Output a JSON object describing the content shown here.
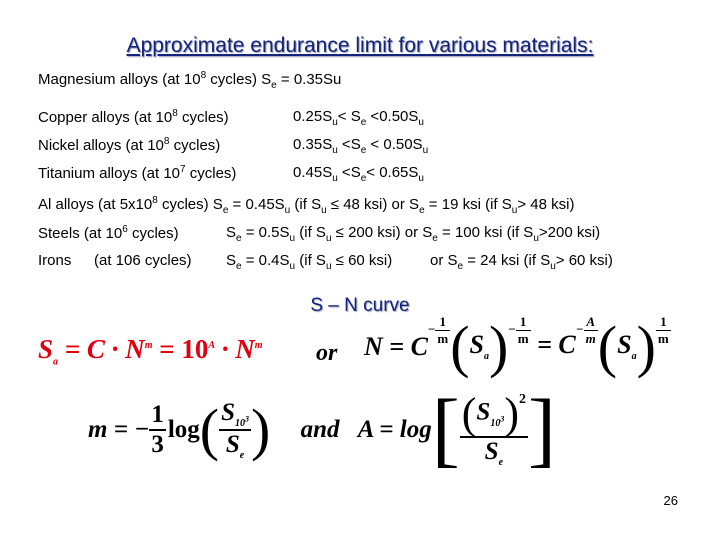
{
  "title": "Approximate endurance limit for various materials:",
  "rows": [
    {
      "c1": "Magnesium alloys  (at 10",
      "c1sup": "8",
      "c1b": " cycles)   S",
      "c1sub": "e",
      "c1c": " = 0.35Su"
    },
    {
      "c1": "Copper alloys (at 10",
      "c1sup": "8",
      "c1b": " cycles)",
      "c2": "0.25S",
      "c2sub": "u",
      "c2b": "< S",
      "c2sub2": "e",
      "c2c": " <0.50S",
      "c2sub3": "u"
    },
    {
      "c1": "Nickel alloys (at 10",
      "c1sup": "8",
      "c1b": " cycles)",
      "c2": "0.35S",
      "c2sub": "u",
      "c2b": " <S",
      "c2sub2": "e",
      "c2c": " < 0.50S",
      "c2sub3": "u"
    },
    {
      "c1": "Titanium alloys (at 10",
      "c1sup": "7",
      "c1b": " cycles)",
      "c2": "0.45S",
      "c2sub": "u",
      "c2b": " <S",
      "c2sub2": "e",
      "c2c": "< 0.65S",
      "c2sub3": "u"
    }
  ],
  "al": {
    "a": "Al alloys (at 5x10",
    "sup": "8",
    "b": " cycles) S",
    "sub1": "e",
    "c": " = 0.45S",
    "sub2": "u",
    "d": " (if S",
    "sub3": "u",
    "e": " ≤ 48 ksi)  or   S",
    "sub4": "e",
    "f": " = 19 ksi (if S",
    "sub5": "u",
    "g": "> 48 ksi)"
  },
  "steels": {
    "a": "Steels   (at 10",
    "sup": "6",
    "b": " cycles)",
    "c": "S",
    "sub1": "e",
    "d": " = 0.5S",
    "sub2": "u",
    "e": " (if S",
    "sub3": "u",
    "f": "  ≤ 200 ksi)  or   S",
    "sub4": "e",
    "g": " = 100 ksi (if S",
    "sub5": "u",
    "h": ">200 ksi)"
  },
  "irons": {
    "a": "Irons",
    "b": "(at 106 cycles)",
    "c": "S",
    "sub1": "e",
    "d": " = 0.4S",
    "sub2": "u",
    "e": " (if S",
    "sub3": "u",
    "f": " ≤ 60 ksi)",
    "g": "or   S",
    "sub4": "e",
    "h": " = 24 ksi (if S",
    "sub5": "u",
    "i": "> 60 ksi)"
  },
  "sn_title": "S – N curve",
  "eq1": {
    "lhs": "S",
    "lhs_sub": "a",
    "mid": " = C · N",
    "mid_sup": "m",
    "rhs": " = 10",
    "rhs_sup": "A",
    "rhs2": " · N",
    "rhs2_sup": "m"
  },
  "eq_or": "or",
  "eq2": {
    "lhs": "N = C",
    "exp_num": "1",
    "exp_den": "m",
    "s": "S",
    "s_sub": "a",
    "p_num": "1",
    "p_den": "m",
    "eq": " = C",
    "e2num": "A",
    "e2den": "m",
    "s2": "S",
    "s2_sub": "a",
    "p2num": "1",
    "p2den": "m"
  },
  "eq3": {
    "m": "m = −",
    "f_num": "1",
    "f_den": "3",
    "log": "log",
    "s_num": "S",
    "s_num_sub": "10",
    "s_num_sup": "3",
    "s_den": "S",
    "s_den_sub": "e",
    "and": "and",
    "A": "A = log",
    "a_num": "S",
    "a_num_sub": "10",
    "a_num_sup": "3",
    "a_pow": "2",
    "a_den": "S",
    "a_den_sub": "e"
  },
  "page_number": "26"
}
